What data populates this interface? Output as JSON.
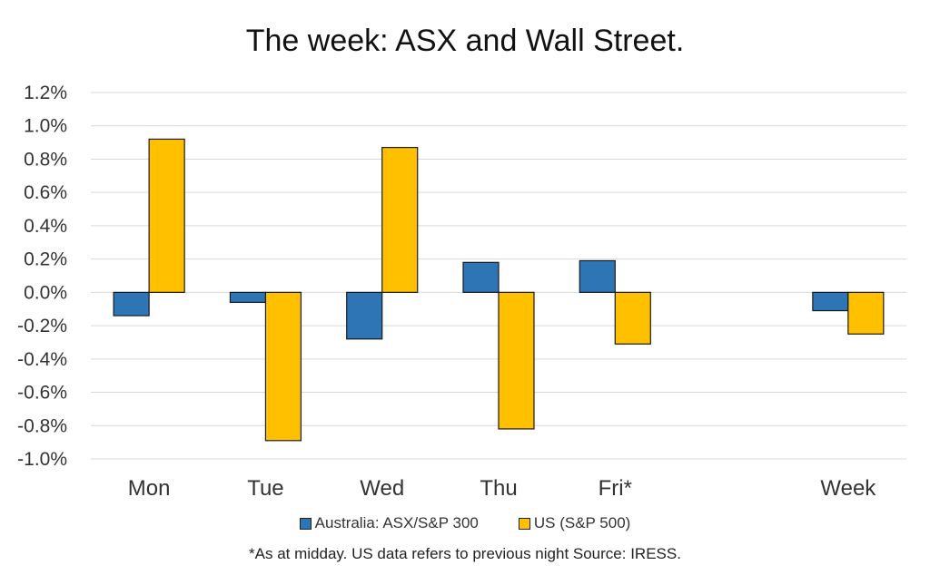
{
  "chart_data": {
    "type": "bar",
    "title": "The week:  ASX and Wall Street.",
    "categories": [
      "Mon",
      "Tue",
      "Wed",
      "Thu",
      "Fri*",
      "",
      "Week"
    ],
    "series": [
      {
        "name": "Australia: ASX/S&P 300",
        "color": "#2E75B6",
        "values": [
          -0.14,
          -0.06,
          -0.28,
          0.18,
          0.19,
          null,
          -0.11
        ]
      },
      {
        "name": "US (S&P 500)",
        "color": "#FFC000",
        "values": [
          0.92,
          -0.89,
          0.87,
          -0.82,
          -0.31,
          null,
          -0.25
        ]
      }
    ],
    "ylim": [
      -1.0,
      1.2
    ],
    "yticks": [
      1.2,
      1.0,
      0.8,
      0.6,
      0.4,
      0.2,
      0.0,
      -0.2,
      -0.4,
      -0.6,
      -0.8,
      -1.0
    ],
    "ytick_labels": [
      "1.2%",
      "1.0%",
      "0.8%",
      "0.6%",
      "0.4%",
      "0.2%",
      "0.0%",
      "-0.2%",
      "-0.4%",
      "-0.6%",
      "-0.8%",
      "-1.0%"
    ],
    "grid": true,
    "legend_position": "bottom",
    "footnote": "*As at midday. US data refers to previous night  Source:  IRESS."
  }
}
